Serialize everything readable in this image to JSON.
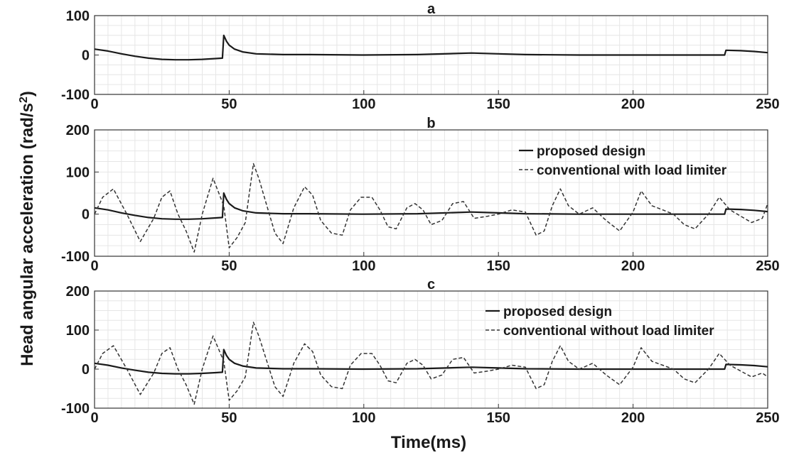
{
  "figure": {
    "ylabel_main": "Head angular acceleration (rad/s",
    "ylabel_sup": "2",
    "ylabel_end": ")",
    "xlabel": "Time(ms)"
  },
  "chart_data": [
    {
      "type": "line",
      "title": "a",
      "xlim": [
        0,
        250
      ],
      "ylim": [
        -100,
        100
      ],
      "xticks": [
        0,
        50,
        100,
        150,
        200,
        250
      ],
      "yticks": [
        -100,
        0,
        100
      ],
      "grid": true,
      "legend": null,
      "series": [
        {
          "style": "solid",
          "color": "#1a1a1a",
          "x": [
            0,
            5,
            10,
            15,
            20,
            25,
            30,
            35,
            40,
            45,
            47.5,
            48,
            49,
            50,
            52,
            55,
            60,
            70,
            80,
            100,
            120,
            140,
            150,
            160,
            180,
            200,
            220,
            234,
            234.5,
            240,
            245,
            250
          ],
          "y": [
            15,
            10,
            3,
            -3,
            -8,
            -11,
            -12,
            -12,
            -11,
            -9,
            -8,
            50,
            35,
            25,
            15,
            8,
            3,
            1,
            1,
            0,
            1,
            5,
            3,
            1,
            0,
            0,
            0,
            0,
            12,
            11,
            9,
            6
          ]
        }
      ]
    },
    {
      "type": "line",
      "title": "b",
      "xlim": [
        0,
        250
      ],
      "ylim": [
        -100,
        200
      ],
      "xticks": [
        0,
        50,
        100,
        150,
        200,
        250
      ],
      "yticks": [
        -100,
        0,
        100,
        200
      ],
      "grid": true,
      "legend": "top-right",
      "series": [
        {
          "name": "proposed design",
          "style": "solid",
          "color": "#1a1a1a",
          "x": [
            0,
            5,
            10,
            15,
            20,
            25,
            30,
            35,
            40,
            45,
            47.5,
            48,
            49,
            50,
            52,
            55,
            60,
            70,
            80,
            100,
            120,
            140,
            150,
            160,
            180,
            200,
            220,
            234,
            234.5,
            240,
            245,
            250
          ],
          "y": [
            15,
            10,
            3,
            -3,
            -8,
            -11,
            -12,
            -12,
            -11,
            -9,
            -8,
            50,
            35,
            25,
            15,
            8,
            3,
            1,
            1,
            0,
            1,
            5,
            3,
            1,
            0,
            0,
            0,
            0,
            12,
            11,
            9,
            6
          ]
        },
        {
          "name": "conventional with load limiter",
          "style": "dashed",
          "color": "#333333",
          "x": [
            0,
            3,
            7,
            12,
            17,
            22,
            25,
            28,
            31,
            34,
            37,
            40,
            44,
            48,
            50,
            53,
            56,
            59,
            61,
            64,
            67,
            70,
            74,
            78,
            81,
            84,
            88,
            92,
            95,
            99,
            103,
            106,
            109,
            112,
            116,
            119,
            122,
            125,
            129,
            133,
            137,
            141,
            146,
            150,
            155,
            160,
            164,
            167,
            170,
            173,
            176,
            180,
            185,
            190,
            195,
            200,
            203,
            207,
            211,
            215,
            219,
            223,
            228,
            232,
            236,
            240,
            244,
            248,
            250
          ],
          "y": [
            0,
            40,
            60,
            0,
            -65,
            -10,
            40,
            55,
            0,
            -40,
            -90,
            0,
            85,
            20,
            -80,
            -55,
            -20,
            120,
            85,
            20,
            -45,
            -70,
            15,
            65,
            45,
            -15,
            -45,
            -50,
            10,
            40,
            40,
            10,
            -30,
            -35,
            15,
            25,
            10,
            -25,
            -15,
            25,
            30,
            -10,
            -5,
            0,
            10,
            5,
            -50,
            -40,
            20,
            60,
            20,
            0,
            15,
            -15,
            -40,
            5,
            55,
            20,
            10,
            0,
            -25,
            -35,
            0,
            40,
            10,
            -5,
            -20,
            -10,
            25
          ]
        }
      ]
    },
    {
      "type": "line",
      "title": "c",
      "xlim": [
        0,
        250
      ],
      "ylim": [
        -100,
        200
      ],
      "xticks": [
        0,
        50,
        100,
        150,
        200,
        250
      ],
      "yticks": [
        -100,
        0,
        100,
        200
      ],
      "grid": true,
      "legend": "top-right",
      "series": [
        {
          "name": "proposed design",
          "style": "solid",
          "color": "#1a1a1a",
          "x": [
            0,
            5,
            10,
            15,
            20,
            25,
            30,
            35,
            40,
            45,
            47.5,
            48,
            49,
            50,
            52,
            55,
            60,
            70,
            80,
            100,
            120,
            140,
            150,
            160,
            180,
            200,
            220,
            234,
            234.5,
            240,
            245,
            250
          ],
          "y": [
            15,
            10,
            3,
            -3,
            -8,
            -11,
            -12,
            -12,
            -11,
            -9,
            -8,
            50,
            35,
            25,
            15,
            8,
            3,
            1,
            1,
            0,
            1,
            5,
            3,
            1,
            0,
            0,
            0,
            0,
            12,
            11,
            9,
            6
          ]
        },
        {
          "name": "conventional without load limiter",
          "style": "dashed",
          "color": "#333333",
          "x": [
            0,
            3,
            7,
            12,
            17,
            22,
            25,
            28,
            31,
            34,
            37,
            40,
            44,
            48,
            50,
            53,
            56,
            59,
            61,
            64,
            67,
            70,
            74,
            78,
            81,
            84,
            88,
            92,
            95,
            99,
            103,
            106,
            109,
            112,
            116,
            119,
            122,
            125,
            129,
            133,
            137,
            141,
            146,
            150,
            155,
            160,
            164,
            167,
            170,
            173,
            176,
            180,
            185,
            190,
            195,
            200,
            203,
            207,
            211,
            215,
            219,
            223,
            228,
            232,
            236,
            240,
            244,
            248,
            250
          ],
          "y": [
            0,
            40,
            60,
            0,
            -65,
            -10,
            40,
            55,
            0,
            -40,
            -90,
            0,
            85,
            20,
            -80,
            -55,
            -20,
            120,
            85,
            20,
            -45,
            -70,
            15,
            65,
            45,
            -15,
            -45,
            -50,
            10,
            40,
            40,
            10,
            -30,
            -35,
            15,
            25,
            10,
            -25,
            -15,
            25,
            30,
            -10,
            -5,
            0,
            10,
            5,
            -50,
            -40,
            20,
            60,
            20,
            0,
            15,
            -15,
            -40,
            5,
            55,
            20,
            10,
            0,
            -25,
            -35,
            0,
            40,
            10,
            -5,
            -20,
            -10,
            -20
          ]
        }
      ]
    }
  ]
}
